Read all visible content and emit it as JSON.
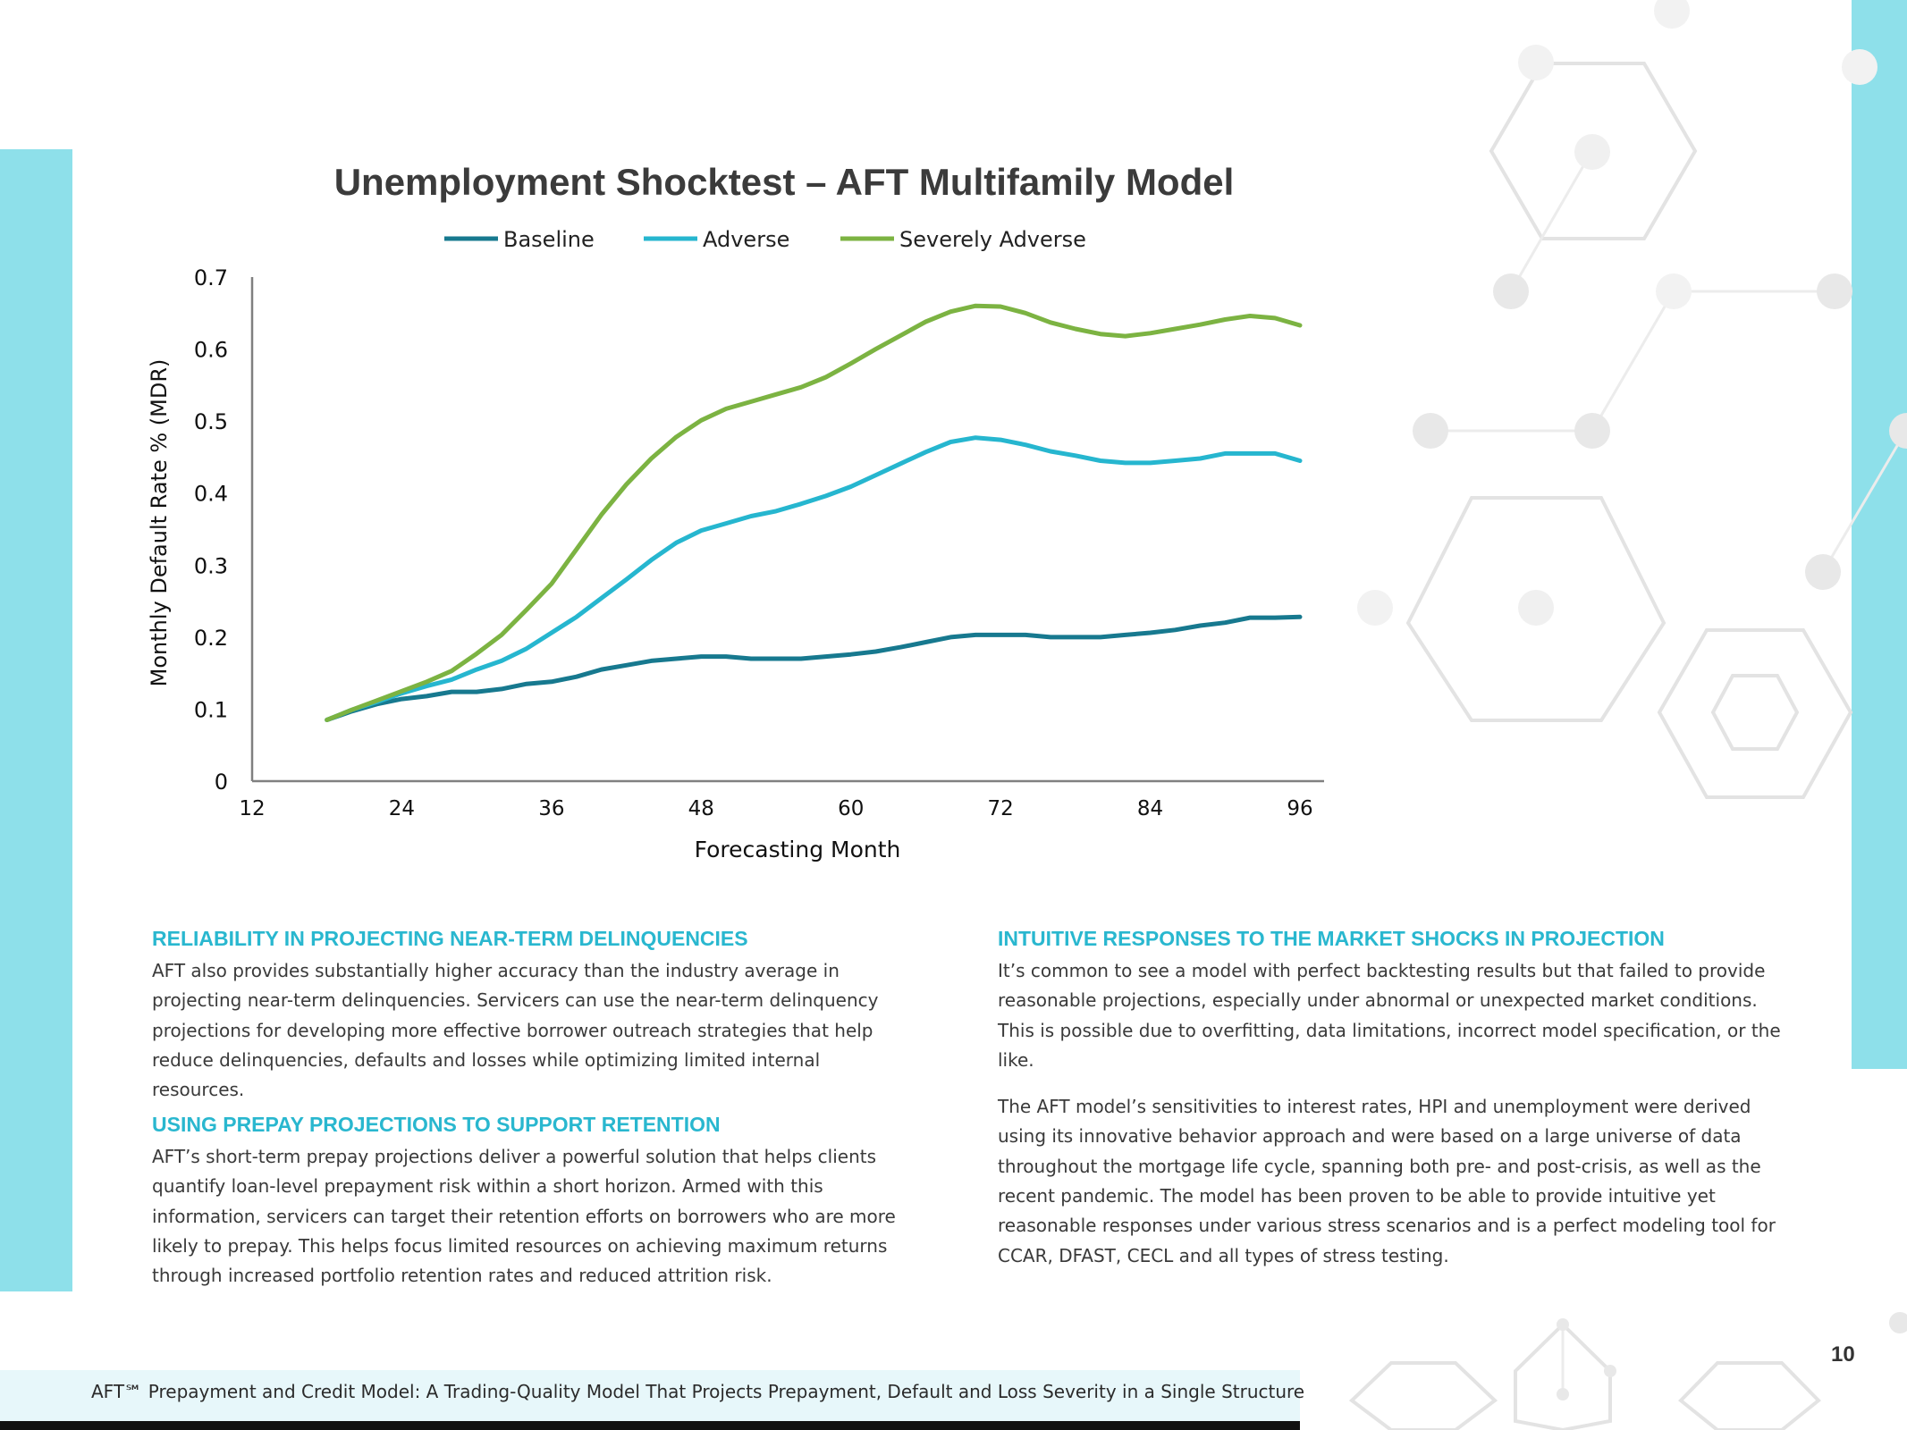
{
  "chart_data": {
    "type": "line",
    "title": "Unemployment Shocktest – AFT Multifamily Model",
    "xlabel": "Forecasting Month",
    "ylabel": "Monthly Default Rate % (MDR)",
    "xlim": [
      12,
      96
    ],
    "ylim": [
      0,
      0.7
    ],
    "xticks": [
      "12",
      "24",
      "36",
      "48",
      "60",
      "72",
      "84",
      "96"
    ],
    "yticks": [
      "0",
      "0.1",
      "0.2",
      "0.3",
      "0.4",
      "0.5",
      "0.6",
      "0.7"
    ],
    "legend_position": "top",
    "grid": false,
    "x": [
      18,
      20,
      22,
      24,
      26,
      28,
      30,
      32,
      34,
      36,
      38,
      40,
      42,
      44,
      46,
      48,
      50,
      52,
      54,
      56,
      58,
      60,
      62,
      64,
      66,
      68,
      70,
      72,
      74,
      76,
      78,
      80,
      82,
      84,
      86,
      88,
      90,
      92,
      94,
      96
    ],
    "series": [
      {
        "name": "Baseline",
        "color": "#17798f",
        "values": [
          0.085,
          0.097,
          0.107,
          0.114,
          0.118,
          0.124,
          0.124,
          0.128,
          0.135,
          0.138,
          0.145,
          0.155,
          0.161,
          0.167,
          0.17,
          0.173,
          0.173,
          0.17,
          0.17,
          0.17,
          0.173,
          0.176,
          0.18,
          0.186,
          0.193,
          0.2,
          0.203,
          0.203,
          0.203,
          0.2,
          0.2,
          0.2,
          0.203,
          0.206,
          0.21,
          0.216,
          0.22,
          0.227,
          0.227,
          0.228
        ]
      },
      {
        "name": "Adverse",
        "color": "#26b6cf",
        "values": [
          0.085,
          0.099,
          0.11,
          0.122,
          0.132,
          0.141,
          0.155,
          0.167,
          0.184,
          0.206,
          0.228,
          0.254,
          0.28,
          0.307,
          0.331,
          0.348,
          0.358,
          0.368,
          0.375,
          0.385,
          0.396,
          0.409,
          0.425,
          0.441,
          0.457,
          0.471,
          0.477,
          0.474,
          0.467,
          0.458,
          0.452,
          0.445,
          0.442,
          0.442,
          0.445,
          0.448,
          0.455,
          0.455,
          0.455,
          0.445
        ]
      },
      {
        "name": "Severely Adverse",
        "color": "#7cb342",
        "values": [
          0.085,
          0.099,
          0.112,
          0.125,
          0.138,
          0.153,
          0.177,
          0.203,
          0.238,
          0.274,
          0.322,
          0.37,
          0.412,
          0.448,
          0.478,
          0.501,
          0.517,
          0.527,
          0.537,
          0.547,
          0.561,
          0.58,
          0.6,
          0.619,
          0.638,
          0.652,
          0.66,
          0.659,
          0.65,
          0.637,
          0.628,
          0.621,
          0.618,
          0.622,
          0.628,
          0.634,
          0.641,
          0.646,
          0.643,
          0.633
        ]
      }
    ]
  },
  "sections": {
    "reliability": {
      "heading": "RELIABILITY IN PROJECTING NEAR-TERM DELINQUENCIES",
      "body": "AFT also provides substantially higher accuracy than the industry average in projecting near-term delinquencies. Servicers can use the near-term delinquency projections for developing more effective borrower outreach strategies that help reduce delinquencies, defaults and losses while optimizing limited internal resources."
    },
    "prepay": {
      "heading": "USING PREPAY PROJECTIONS TO SUPPORT RETENTION",
      "body": "AFT’s short-term prepay projections deliver a powerful solution that helps clients quantify loan-level prepayment risk within a short horizon. Armed with this information, servicers can target their retention efforts on borrowers who are more likely to prepay. This helps focus limited resources on achieving maximum returns through increased portfolio retention rates and reduced attrition risk."
    },
    "intuitive": {
      "heading": "INTUITIVE RESPONSES TO THE MARKET SHOCKS IN PROJECTION",
      "body1": "It’s common to see a model with perfect backtesting results but that failed to provide reasonable projections, especially under abnormal or unexpected market conditions. This is possible due to overfitting, data limitations, incorrect model specification, or the like.",
      "body2": "The AFT model’s sensitivities to interest rates, HPI and unemployment were derived using its innovative behavior approach and were based on a large universe of data throughout the mortgage life cycle, spanning both pre- and post-crisis, as well as the recent pandemic. The model has been proven to be able to provide intuitive yet reasonable responses under various stress scenarios and is a perfect modeling tool for CCAR, DFAST, CECL and all types of stress testing."
    }
  },
  "page_number": "10",
  "footer": {
    "text": "AFT℠ Prepayment and Credit Model: A Trading-Quality Model That Projects Prepayment, Default and Loss Severity in a Single Structure"
  },
  "colors": {
    "accent": "#8ee0ea",
    "heading": "#29b7cf"
  }
}
